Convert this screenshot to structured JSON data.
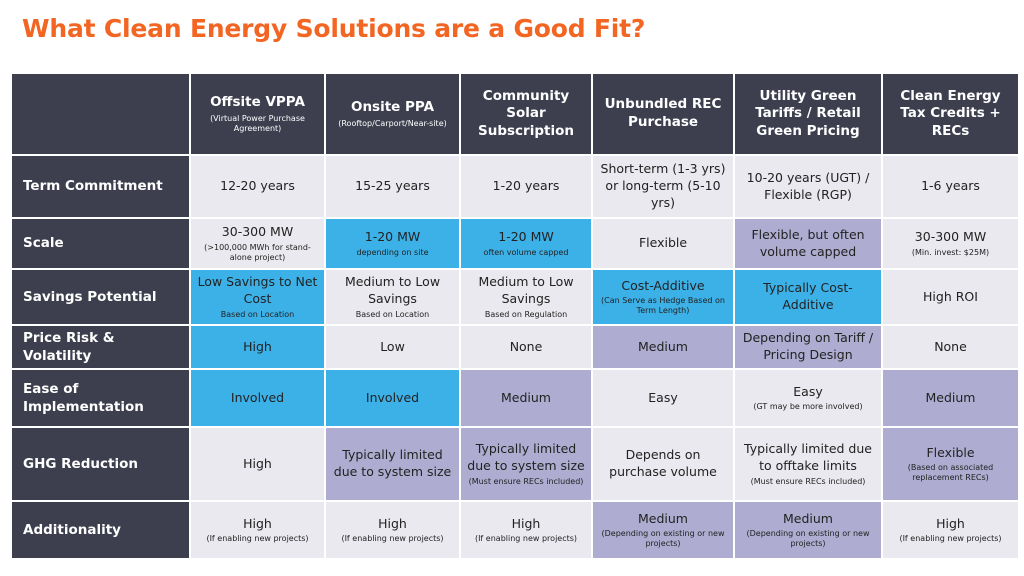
{
  "title": "What Clean Energy Solutions are a Good Fit?",
  "columns": [
    {
      "label": "",
      "sub": ""
    },
    {
      "label": "Offsite VPPA",
      "sub": "(Virtual Power Purchase Agreement)"
    },
    {
      "label": "Onsite PPA",
      "sub": "(Rooftop/Carport/Near-site)"
    },
    {
      "label": "Community Solar Subscription",
      "sub": ""
    },
    {
      "label": "Unbundled REC Purchase",
      "sub": ""
    },
    {
      "label": "Utility Green Tariffs / Retail Green Pricing",
      "sub": ""
    },
    {
      "label": "Clean Energy Tax Credits + RECs",
      "sub": ""
    }
  ],
  "rows": [
    {
      "label": "Term Commitment",
      "cells": [
        {
          "main": "12-20 years",
          "sub": "",
          "color": "#e9e9ef"
        },
        {
          "main": "15-25 years",
          "sub": "",
          "color": "#e9e9ef"
        },
        {
          "main": "1-20 years",
          "sub": "",
          "color": "#e9e9ef"
        },
        {
          "main": "Short-term (1-3 yrs) or long-term (5-10 yrs)",
          "sub": "",
          "color": "#e9e9ef"
        },
        {
          "main": "10-20 years (UGT) / Flexible (RGP)",
          "sub": "",
          "color": "#e9e9ef"
        },
        {
          "main": "1-6 years",
          "sub": "",
          "color": "#e9e9ef"
        }
      ]
    },
    {
      "label": "Scale",
      "cells": [
        {
          "main": "30-300 MW",
          "sub": "(>100,000 MWh for stand-alone project)",
          "color": "#e9e9ef"
        },
        {
          "main": "1-20 MW",
          "sub": "depending on site",
          "color": "#3cb1e8"
        },
        {
          "main": "1-20 MW",
          "sub": "often volume capped",
          "color": "#3cb1e8"
        },
        {
          "main": "Flexible",
          "sub": "",
          "color": "#e9e9ef"
        },
        {
          "main": "Flexible, but often volume capped",
          "sub": "",
          "color": "#aeacd0"
        },
        {
          "main": "30-300 MW",
          "sub": "(Min. invest: $25M)",
          "color": "#e9e9ef"
        }
      ]
    },
    {
      "label": "Savings Potential",
      "cells": [
        {
          "main": "Low Savings to Net Cost",
          "sub": "Based on Location",
          "color": "#3cb1e8"
        },
        {
          "main": "Medium to Low Savings",
          "sub": "Based on Location",
          "color": "#e9e9ef"
        },
        {
          "main": "Medium to Low Savings",
          "sub": "Based on Regulation",
          "color": "#e9e9ef"
        },
        {
          "main": "Cost-Additive",
          "sub": "(Can Serve as Hedge Based on Term Length)",
          "color": "#3cb1e8"
        },
        {
          "main": "Typically Cost-Additive",
          "sub": "",
          "color": "#3cb1e8"
        },
        {
          "main": "High ROI",
          "sub": "",
          "color": "#e9e9ef"
        }
      ]
    },
    {
      "label": "Price Risk & Volatility",
      "cells": [
        {
          "main": "High",
          "sub": "",
          "color": "#3cb1e8"
        },
        {
          "main": "Low",
          "sub": "",
          "color": "#e9e9ef"
        },
        {
          "main": "None",
          "sub": "",
          "color": "#e9e9ef"
        },
        {
          "main": "Medium",
          "sub": "",
          "color": "#aeacd0"
        },
        {
          "main": "Depending on Tariff / Pricing Design",
          "sub": "",
          "color": "#aeacd0"
        },
        {
          "main": "None",
          "sub": "",
          "color": "#e9e9ef"
        }
      ]
    },
    {
      "label": "Ease of Implementation",
      "cells": [
        {
          "main": "Involved",
          "sub": "",
          "color": "#3cb1e8"
        },
        {
          "main": "Involved",
          "sub": "",
          "color": "#3cb1e8"
        },
        {
          "main": "Medium",
          "sub": "",
          "color": "#aeacd0"
        },
        {
          "main": "Easy",
          "sub": "",
          "color": "#e9e9ef"
        },
        {
          "main": "Easy",
          "sub": "(GT may be more involved)",
          "color": "#e9e9ef"
        },
        {
          "main": "Medium",
          "sub": "",
          "color": "#aeacd0"
        }
      ]
    },
    {
      "label": "GHG Reduction",
      "cells": [
        {
          "main": "High",
          "sub": "",
          "color": "#e9e9ef"
        },
        {
          "main": "Typically limited due to system size",
          "sub": "",
          "color": "#aeacd0"
        },
        {
          "main": "Typically limited due to system size",
          "sub": "(Must ensure RECs included)",
          "color": "#aeacd0"
        },
        {
          "main": "Depends on purchase volume",
          "sub": "",
          "color": "#e9e9ef"
        },
        {
          "main": "Typically limited due to offtake limits",
          "sub": "(Must ensure RECs included)",
          "color": "#e9e9ef"
        },
        {
          "main": "Flexible",
          "sub": "(Based on associated replacement RECs)",
          "color": "#aeacd0"
        }
      ]
    },
    {
      "label": "Additionality",
      "cells": [
        {
          "main": "High",
          "sub": "(If enabling new projects)",
          "color": "#e9e9ef"
        },
        {
          "main": "High",
          "sub": "(If enabling new projects)",
          "color": "#e9e9ef"
        },
        {
          "main": "High",
          "sub": "(If enabling new projects)",
          "color": "#e9e9ef"
        },
        {
          "main": "Medium",
          "sub": "(Depending on existing or new projects)",
          "color": "#aeacd0"
        },
        {
          "main": "Medium",
          "sub": "(Depending on existing or new projects)",
          "color": "#aeacd0"
        },
        {
          "main": "High",
          "sub": "(If enabling new projects)",
          "color": "#e9e9ef"
        }
      ]
    }
  ]
}
